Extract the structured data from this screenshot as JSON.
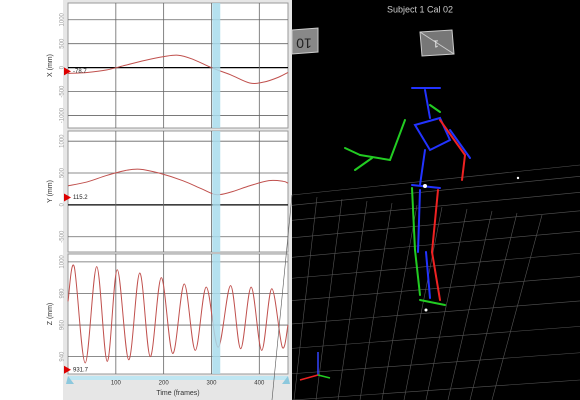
{
  "chart_data": [
    {
      "type": "line",
      "ylabel": "X (mm)",
      "color": "#c0504d",
      "x": [
        0,
        40,
        80,
        120,
        160,
        200,
        230,
        260,
        300,
        340,
        380,
        410,
        440,
        460
      ],
      "values": [
        -120,
        -100,
        -50,
        50,
        150,
        230,
        260,
        180,
        0,
        -150,
        -320,
        -300,
        -200,
        -100
      ],
      "xlim": [
        0,
        460
      ],
      "xticks": [
        100,
        200,
        300,
        400
      ],
      "ylim": [
        -1260,
        1350
      ],
      "yticks": [
        1000,
        500,
        0,
        -500,
        -1000
      ],
      "grid": true,
      "current_value": -78.7,
      "cursor_frame": 310
    },
    {
      "type": "line",
      "ylabel": "Y (mm)",
      "color": "#c0504d",
      "x": [
        0,
        40,
        80,
        120,
        150,
        190,
        240,
        280,
        310,
        340,
        380,
        420,
        450,
        460
      ],
      "values": [
        300,
        360,
        460,
        540,
        560,
        500,
        380,
        250,
        160,
        200,
        300,
        380,
        370,
        340
      ],
      "xlim": [
        0,
        460
      ],
      "xticks": [
        100,
        200,
        300,
        400
      ],
      "ylim": [
        -740,
        1160
      ],
      "yticks": [
        1000,
        500,
        0,
        -500
      ],
      "grid": true,
      "current_value": 115.2,
      "cursor_frame": 310
    },
    {
      "type": "line",
      "ylabel": "Z (mm)",
      "xlabel": "Time (frames)",
      "color": "#c0504d",
      "x": [
        0,
        13,
        36,
        60,
        82,
        103,
        127,
        150,
        172,
        195,
        219,
        243,
        266,
        289,
        314,
        340,
        361,
        383,
        405,
        426,
        448,
        460
      ],
      "values": [
        975,
        997,
        936,
        997,
        937,
        995,
        938,
        993,
        940,
        990,
        942,
        986,
        944,
        984,
        946,
        985,
        945,
        984,
        944,
        983,
        946,
        960
      ],
      "xlim": [
        0,
        460
      ],
      "xticks": [
        100,
        200,
        300,
        400
      ],
      "ylim": [
        929,
        1005
      ],
      "yticks": [
        1000,
        980,
        960,
        940
      ],
      "grid": true,
      "current_value": 931.7,
      "cursor_frame": 310
    }
  ],
  "viewport": {
    "title": "Subject 1 Cal 02",
    "camera_labels": [
      "10",
      "1"
    ]
  }
}
